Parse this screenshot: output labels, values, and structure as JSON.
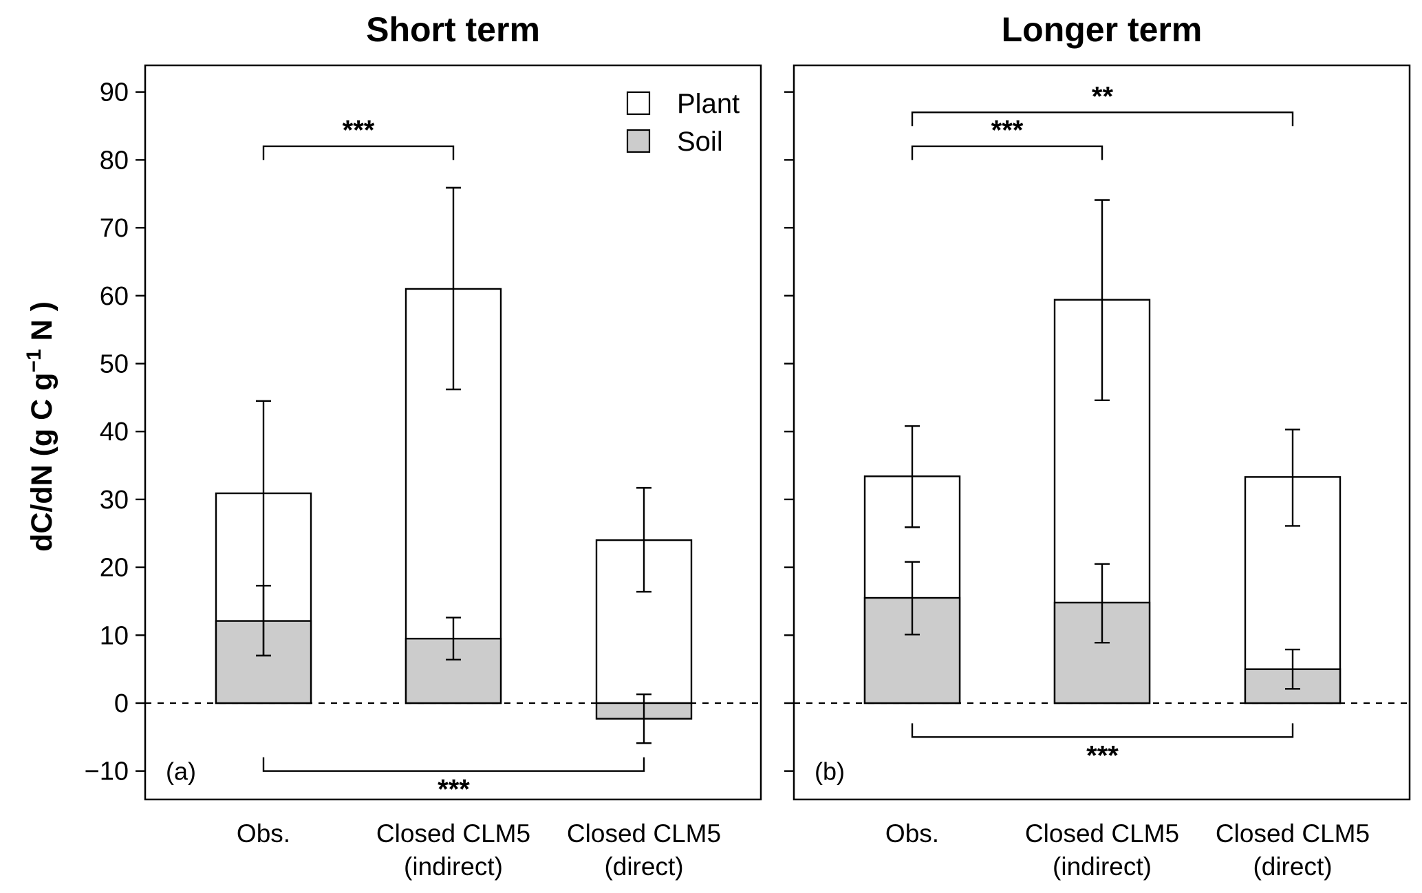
{
  "chart_data": {
    "type": "bar",
    "stacked": true,
    "ylabel": "dC/dN (g C g",
    "ylabel_sup": "−1",
    "ylabel_end": " N )",
    "ylim": [
      -14,
      94
    ],
    "yticks": [
      -10,
      0,
      10,
      20,
      30,
      40,
      50,
      60,
      70,
      80,
      90
    ],
    "ytick_labels": [
      "−10",
      "0",
      "10",
      "20",
      "30",
      "40",
      "50",
      "60",
      "70",
      "80",
      "90"
    ],
    "legend": {
      "position": "top-right of panel (a)",
      "items": [
        {
          "label": "Plant",
          "color": "#ffffff"
        },
        {
          "label": "Soil",
          "color": "#cccccc"
        }
      ]
    },
    "colors": {
      "plant": "#ffffff",
      "soil": "#cccccc",
      "edge": "#000000"
    },
    "panels": [
      {
        "title": "Short term",
        "tag": "(a)",
        "categories": [
          [
            "Obs."
          ],
          [
            "Closed CLM5",
            "(indirect)"
          ],
          [
            "Closed CLM5",
            "(direct)"
          ]
        ],
        "series": [
          {
            "name": "Soil",
            "values": [
              12.1,
              9.5,
              -2.3
            ],
            "err_low": [
              7.0,
              6.4,
              -5.9
            ],
            "err_high": [
              17.3,
              12.6,
              1.3
            ]
          },
          {
            "name": "Plant",
            "values": [
              18.8,
              51.5,
              26.3
            ],
            "total": [
              30.9,
              61.0,
              24.0
            ],
            "err_low": [
              7.0,
              46.2,
              16.4
            ],
            "err_high": [
              44.5,
              75.9,
              31.7
            ]
          }
        ],
        "significance": [
          {
            "from": 0,
            "to": 1,
            "label": "***",
            "y": 82,
            "side": "above"
          },
          {
            "from": 0,
            "to": 2,
            "label": "***",
            "y": -10,
            "side": "below"
          }
        ]
      },
      {
        "title": "Longer term",
        "tag": "(b)",
        "categories": [
          [
            "Obs."
          ],
          [
            "Closed CLM5",
            "(indirect)"
          ],
          [
            "Closed CLM5",
            "(direct)"
          ]
        ],
        "series": [
          {
            "name": "Soil",
            "values": [
              15.5,
              14.8,
              5.0
            ],
            "err_low": [
              10.1,
              8.9,
              2.1
            ],
            "err_high": [
              20.8,
              20.5,
              7.9
            ]
          },
          {
            "name": "Plant",
            "values": [
              17.9,
              44.6,
              28.3
            ],
            "total": [
              33.4,
              59.4,
              33.3
            ],
            "err_low": [
              25.9,
              44.6,
              26.1
            ],
            "err_high": [
              40.8,
              74.1,
              40.3
            ]
          }
        ],
        "significance": [
          {
            "from": 0,
            "to": 2,
            "label": "**",
            "y": 87,
            "side": "above"
          },
          {
            "from": 0,
            "to": 1,
            "label": "***",
            "y": 82,
            "side": "above"
          },
          {
            "from": 0,
            "to": 2,
            "label": "***",
            "y": -5,
            "side": "below"
          }
        ]
      }
    ]
  }
}
